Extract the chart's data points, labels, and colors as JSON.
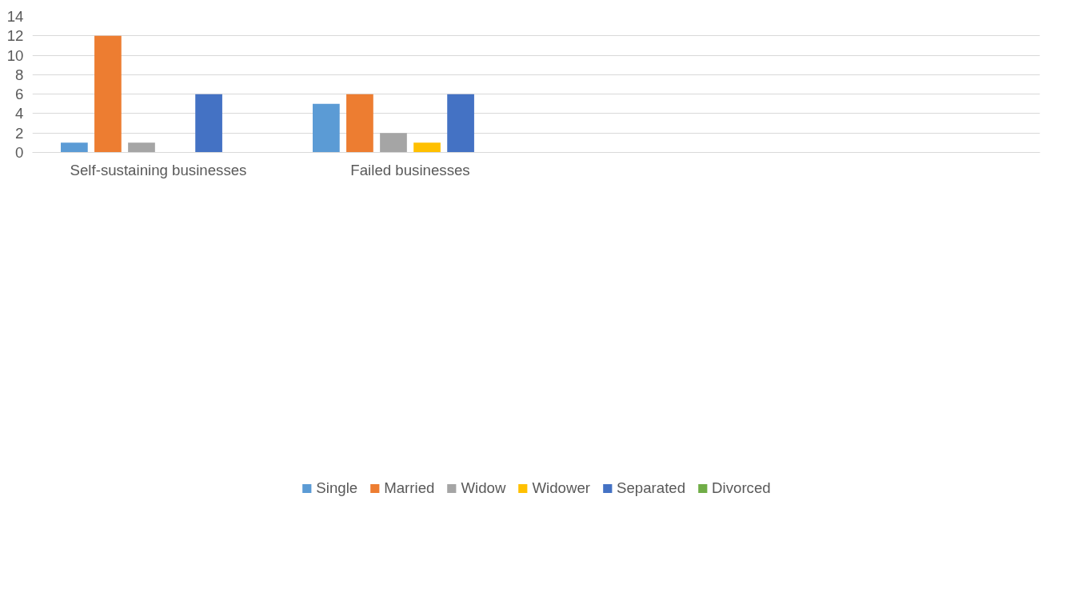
{
  "chart_data": {
    "type": "bar",
    "categories": [
      "Self-sustaining businesses",
      "Failed businesses",
      null,
      null
    ],
    "series": [
      {
        "name": "Single",
        "color": "#5b9bd5",
        "values": [
          1,
          5,
          null,
          null
        ]
      },
      {
        "name": "Married",
        "color": "#ed7d31",
        "values": [
          12,
          6,
          null,
          null
        ]
      },
      {
        "name": "Widow",
        "color": "#a5a5a5",
        "values": [
          1,
          2,
          null,
          null
        ]
      },
      {
        "name": "Widower",
        "color": "#ffc000",
        "values": [
          0,
          1,
          null,
          null
        ]
      },
      {
        "name": "Separated",
        "color": "#4472c4",
        "values": [
          6,
          6,
          null,
          null
        ]
      },
      {
        "name": "Divorced",
        "color": "#70ad47",
        "values": [
          0,
          0,
          null,
          null
        ]
      }
    ],
    "ylim": [
      0,
      14
    ],
    "yticks": [
      0,
      2,
      4,
      6,
      8,
      10,
      12,
      14
    ],
    "grid": "y",
    "legend": "bottom"
  }
}
